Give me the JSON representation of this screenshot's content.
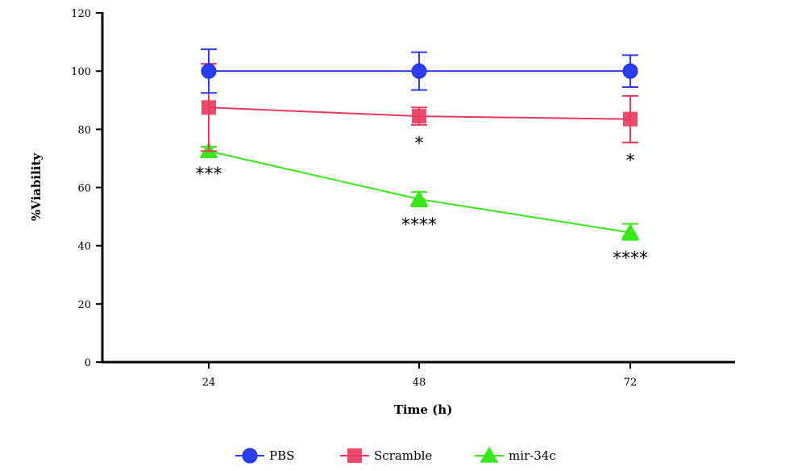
{
  "chart_data": {
    "type": "line",
    "title": "",
    "xlabel": "Time (h)",
    "ylabel": "%Viability",
    "categories": [
      "24",
      "48",
      "72"
    ],
    "ylim": [
      0,
      120
    ],
    "yticks": [
      0,
      20,
      40,
      60,
      80,
      100,
      120
    ],
    "grid": false,
    "legend_position": "bottom",
    "series": [
      {
        "name": "PBS",
        "color": "#2b3df0",
        "marker": "circle",
        "values": [
          100,
          100,
          100
        ],
        "err_low": [
          92.5,
          93.5,
          94.5
        ],
        "err_high": [
          107.5,
          106.5,
          105.5
        ],
        "annotations": [
          "",
          "",
          ""
        ]
      },
      {
        "name": "Scramble",
        "color": "#e8395b",
        "marker": "square",
        "values": [
          87.5,
          84.5,
          83.5
        ],
        "err_low": [
          72.5,
          81.5,
          75.5
        ],
        "err_high": [
          102.5,
          87.5,
          91.5
        ],
        "annotations": [
          "",
          "*",
          "*"
        ]
      },
      {
        "name": "mir-34c",
        "color": "#38e81a",
        "marker": "triangle",
        "values": [
          72.5,
          56,
          44.5
        ],
        "err_low": [
          71,
          53.5,
          42
        ],
        "err_high": [
          74,
          58.5,
          47.5
        ],
        "annotations": [
          "***",
          "****",
          "****"
        ]
      }
    ]
  }
}
